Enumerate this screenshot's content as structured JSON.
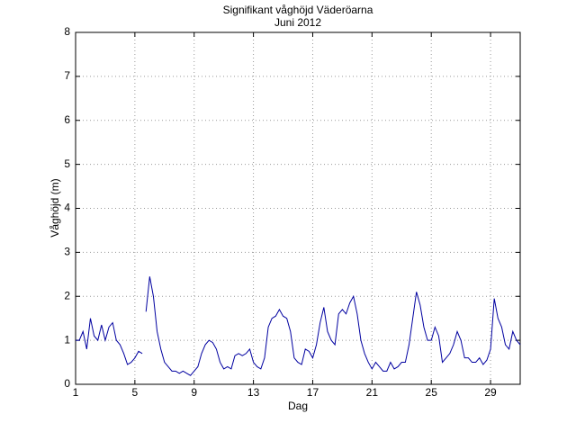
{
  "chart_data": {
    "type": "line",
    "title": "Signifikant våghöjd Väderöarna",
    "subtitle": "Juni 2012",
    "xlabel": "Dag",
    "ylabel": "Våghöjd (m)",
    "x": [
      1,
      1.25,
      1.5,
      1.75,
      2,
      2.25,
      2.5,
      2.75,
      3,
      3.25,
      3.5,
      3.75,
      4,
      4.25,
      4.5,
      4.75,
      5,
      5.25,
      5.5,
      5.6,
      5.75,
      6,
      6.25,
      6.5,
      6.75,
      7,
      7.25,
      7.5,
      7.75,
      8,
      8.25,
      8.5,
      8.75,
      9,
      9.25,
      9.5,
      9.75,
      10,
      10.25,
      10.5,
      10.75,
      11,
      11.25,
      11.5,
      11.75,
      12,
      12.25,
      12.5,
      12.75,
      13,
      13.25,
      13.5,
      13.75,
      14,
      14.25,
      14.5,
      14.75,
      15,
      15.25,
      15.5,
      15.75,
      16,
      16.25,
      16.5,
      16.75,
      17,
      17.25,
      17.5,
      17.75,
      18,
      18.25,
      18.5,
      18.75,
      19,
      19.25,
      19.5,
      19.75,
      20,
      20.25,
      20.5,
      20.75,
      21,
      21.25,
      21.5,
      21.75,
      22,
      22.25,
      22.5,
      22.75,
      23,
      23.25,
      23.5,
      23.75,
      24,
      24.25,
      24.5,
      24.75,
      25,
      25.25,
      25.5,
      25.75,
      26,
      26.25,
      26.5,
      26.75,
      27,
      27.25,
      27.5,
      27.75,
      28,
      28.25,
      28.5,
      28.75,
      29,
      29.25,
      29.5,
      29.75,
      30,
      30.25,
      30.5,
      30.75,
      31
    ],
    "series": [
      {
        "name": "Våghöjd",
        "color": "#0000a0",
        "values": [
          1.0,
          1.0,
          1.2,
          0.8,
          1.5,
          1.1,
          1.0,
          1.35,
          1.0,
          1.3,
          1.4,
          1.0,
          0.9,
          0.7,
          0.45,
          0.5,
          0.6,
          0.75,
          0.7,
          null,
          1.65,
          2.45,
          2.0,
          1.2,
          0.8,
          0.5,
          0.4,
          0.3,
          0.3,
          0.25,
          0.3,
          0.25,
          0.2,
          0.3,
          0.4,
          0.7,
          0.9,
          1.0,
          0.95,
          0.8,
          0.5,
          0.35,
          0.4,
          0.35,
          0.65,
          0.7,
          0.65,
          0.7,
          0.8,
          0.5,
          0.4,
          0.35,
          0.6,
          1.3,
          1.5,
          1.55,
          1.7,
          1.55,
          1.5,
          1.2,
          0.6,
          0.5,
          0.45,
          0.8,
          0.75,
          0.6,
          0.9,
          1.4,
          1.75,
          1.2,
          1.0,
          0.9,
          1.6,
          1.7,
          1.6,
          1.85,
          2.0,
          1.6,
          1.0,
          0.7,
          0.5,
          0.35,
          0.5,
          0.4,
          0.3,
          0.3,
          0.5,
          0.35,
          0.4,
          0.5,
          0.5,
          0.9,
          1.5,
          2.1,
          1.8,
          1.3,
          1.0,
          1.0,
          1.3,
          1.1,
          0.5,
          0.6,
          0.7,
          0.9,
          1.2,
          1.0,
          0.6,
          0.6,
          0.5,
          0.5,
          0.6,
          0.45,
          0.55,
          0.8,
          1.95,
          1.5,
          1.3,
          0.9,
          0.8,
          1.2,
          1.0,
          0.9
        ]
      }
    ],
    "xlim": [
      1,
      31
    ],
    "ylim": [
      0,
      8
    ],
    "xticks": [
      1,
      5,
      9,
      13,
      17,
      21,
      25,
      29
    ],
    "yticks": [
      0,
      1,
      2,
      3,
      4,
      5,
      6,
      7,
      8
    ],
    "grid": true
  }
}
